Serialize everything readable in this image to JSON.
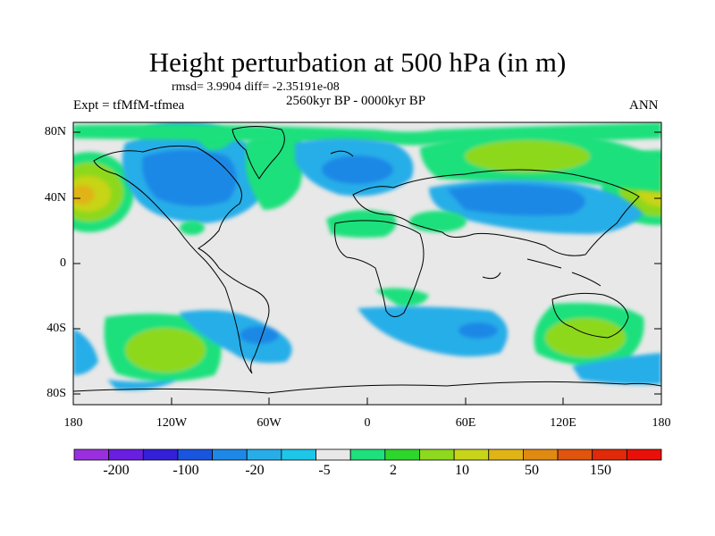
{
  "header": {
    "title": "Height perturbation at 500 hPa (in m)",
    "stats": "rmsd= 3.9904 diff= -2.35191e-08",
    "experiment": "Expt = tfMfM-tfmea",
    "period": "2560kyr BP - 0000kyr BP",
    "season": "ANN"
  },
  "axes": {
    "lat_labels": [
      "80N",
      "40N",
      "0",
      "40S",
      "80S"
    ],
    "lon_labels": [
      "180",
      "120W",
      "60W",
      "0",
      "60E",
      "120E",
      "180"
    ]
  },
  "colorbar": {
    "colors": [
      "#9a2fe0",
      "#6a1ee0",
      "#3320d8",
      "#1a55e0",
      "#1e88e6",
      "#27aee8",
      "#1ec6e8",
      "#e8e8e8",
      "#1ee07c",
      "#2dd62a",
      "#8ed81e",
      "#c8d419",
      "#e0b416",
      "#e08a12",
      "#e0540e",
      "#e02a0a",
      "#e81008"
    ],
    "labels": [
      "-200",
      "-100",
      "-20",
      "-5",
      "2",
      "10",
      "50",
      "150"
    ]
  },
  "colors": {
    "ocean_background": "#e8e8e8",
    "coastline": "#000000"
  }
}
